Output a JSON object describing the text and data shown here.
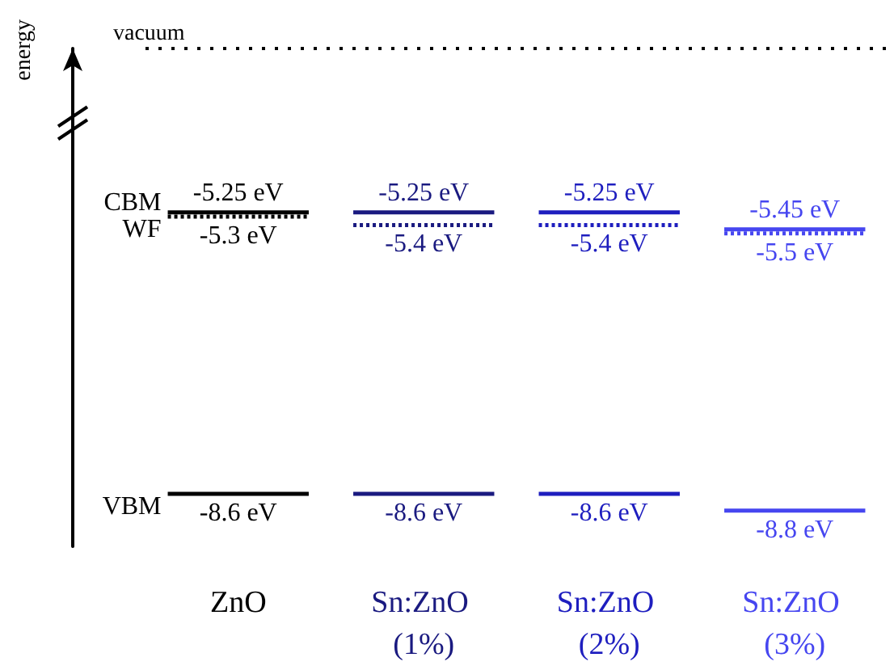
{
  "chart_data": {
    "type": "other",
    "ylabel": "energy",
    "categories": [
      "ZnO",
      "Sn:ZnO (1%)",
      "Sn:ZnO (2%)",
      "Sn:ZnO (3%)"
    ],
    "series": [
      {
        "name": "CBM",
        "colors": [
          "#000000",
          "#1a1a80",
          "#1e1ebf",
          "#4646f0"
        ],
        "line_style": "solid",
        "values": [
          -5.25,
          -5.25,
          -5.25,
          -5.45
        ],
        "value_labels": [
          "-5.25 eV",
          "-5.25 eV",
          "-5.25 eV",
          "-5.45 eV"
        ]
      },
      {
        "name": "WF",
        "colors": [
          "#000000",
          "#1a1a80",
          "#1e1ebf",
          "#4646f0"
        ],
        "line_style": "dotted",
        "values": [
          -5.3,
          -5.4,
          -5.4,
          -5.5
        ],
        "value_labels": [
          "-5.3 eV",
          "-5.4 eV",
          "-5.4 eV",
          "-5.5 eV"
        ]
      },
      {
        "name": "VBM",
        "colors": [
          "#000000",
          "#1a1a80",
          "#1e1ebf",
          "#4646f0"
        ],
        "line_style": "solid",
        "values": [
          -8.6,
          -8.6,
          -8.6,
          -8.8
        ],
        "value_labels": [
          "-8.6 eV",
          "-8.6 eV",
          "-8.6 eV",
          "-8.8 eV"
        ]
      }
    ],
    "annotations": [
      "vacuum"
    ]
  }
}
